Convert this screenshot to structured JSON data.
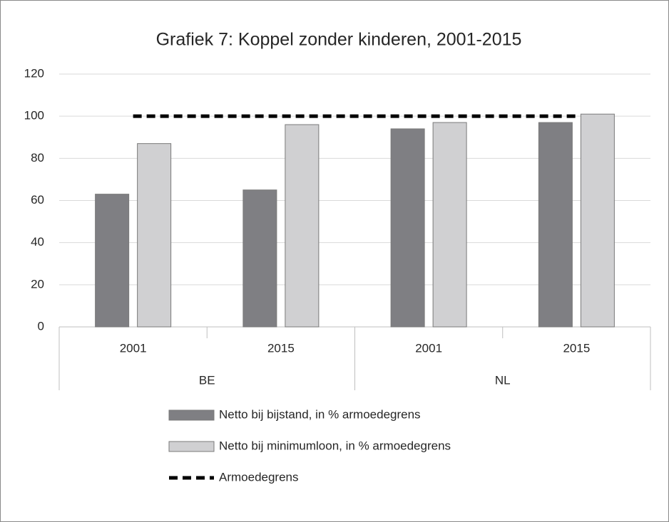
{
  "chart_data": {
    "type": "bar",
    "title": "Grafiek 7: Koppel zonder kinderen, 2001-2015",
    "groups": [
      {
        "label": "BE",
        "categories": [
          "2001",
          "2015"
        ]
      },
      {
        "label": "NL",
        "categories": [
          "2001",
          "2015"
        ]
      }
    ],
    "series": [
      {
        "name": "Netto bij bijstand, in % armoedegrens",
        "type": "bar",
        "color": "#7f7f83",
        "values": [
          63,
          65,
          94,
          97
        ]
      },
      {
        "name": "Netto bij minimumloon, in % armoedegrens",
        "type": "bar",
        "color": "#d0d0d2",
        "values": [
          87,
          96,
          97,
          101
        ]
      },
      {
        "name": "Armoedegrens",
        "type": "line",
        "color": "#000000",
        "values": [
          100,
          100,
          100,
          100
        ]
      }
    ],
    "ylim": [
      0,
      120
    ],
    "yticks": [
      0,
      20,
      40,
      60,
      80,
      100,
      120
    ],
    "grid": true,
    "legend": "bottom"
  }
}
